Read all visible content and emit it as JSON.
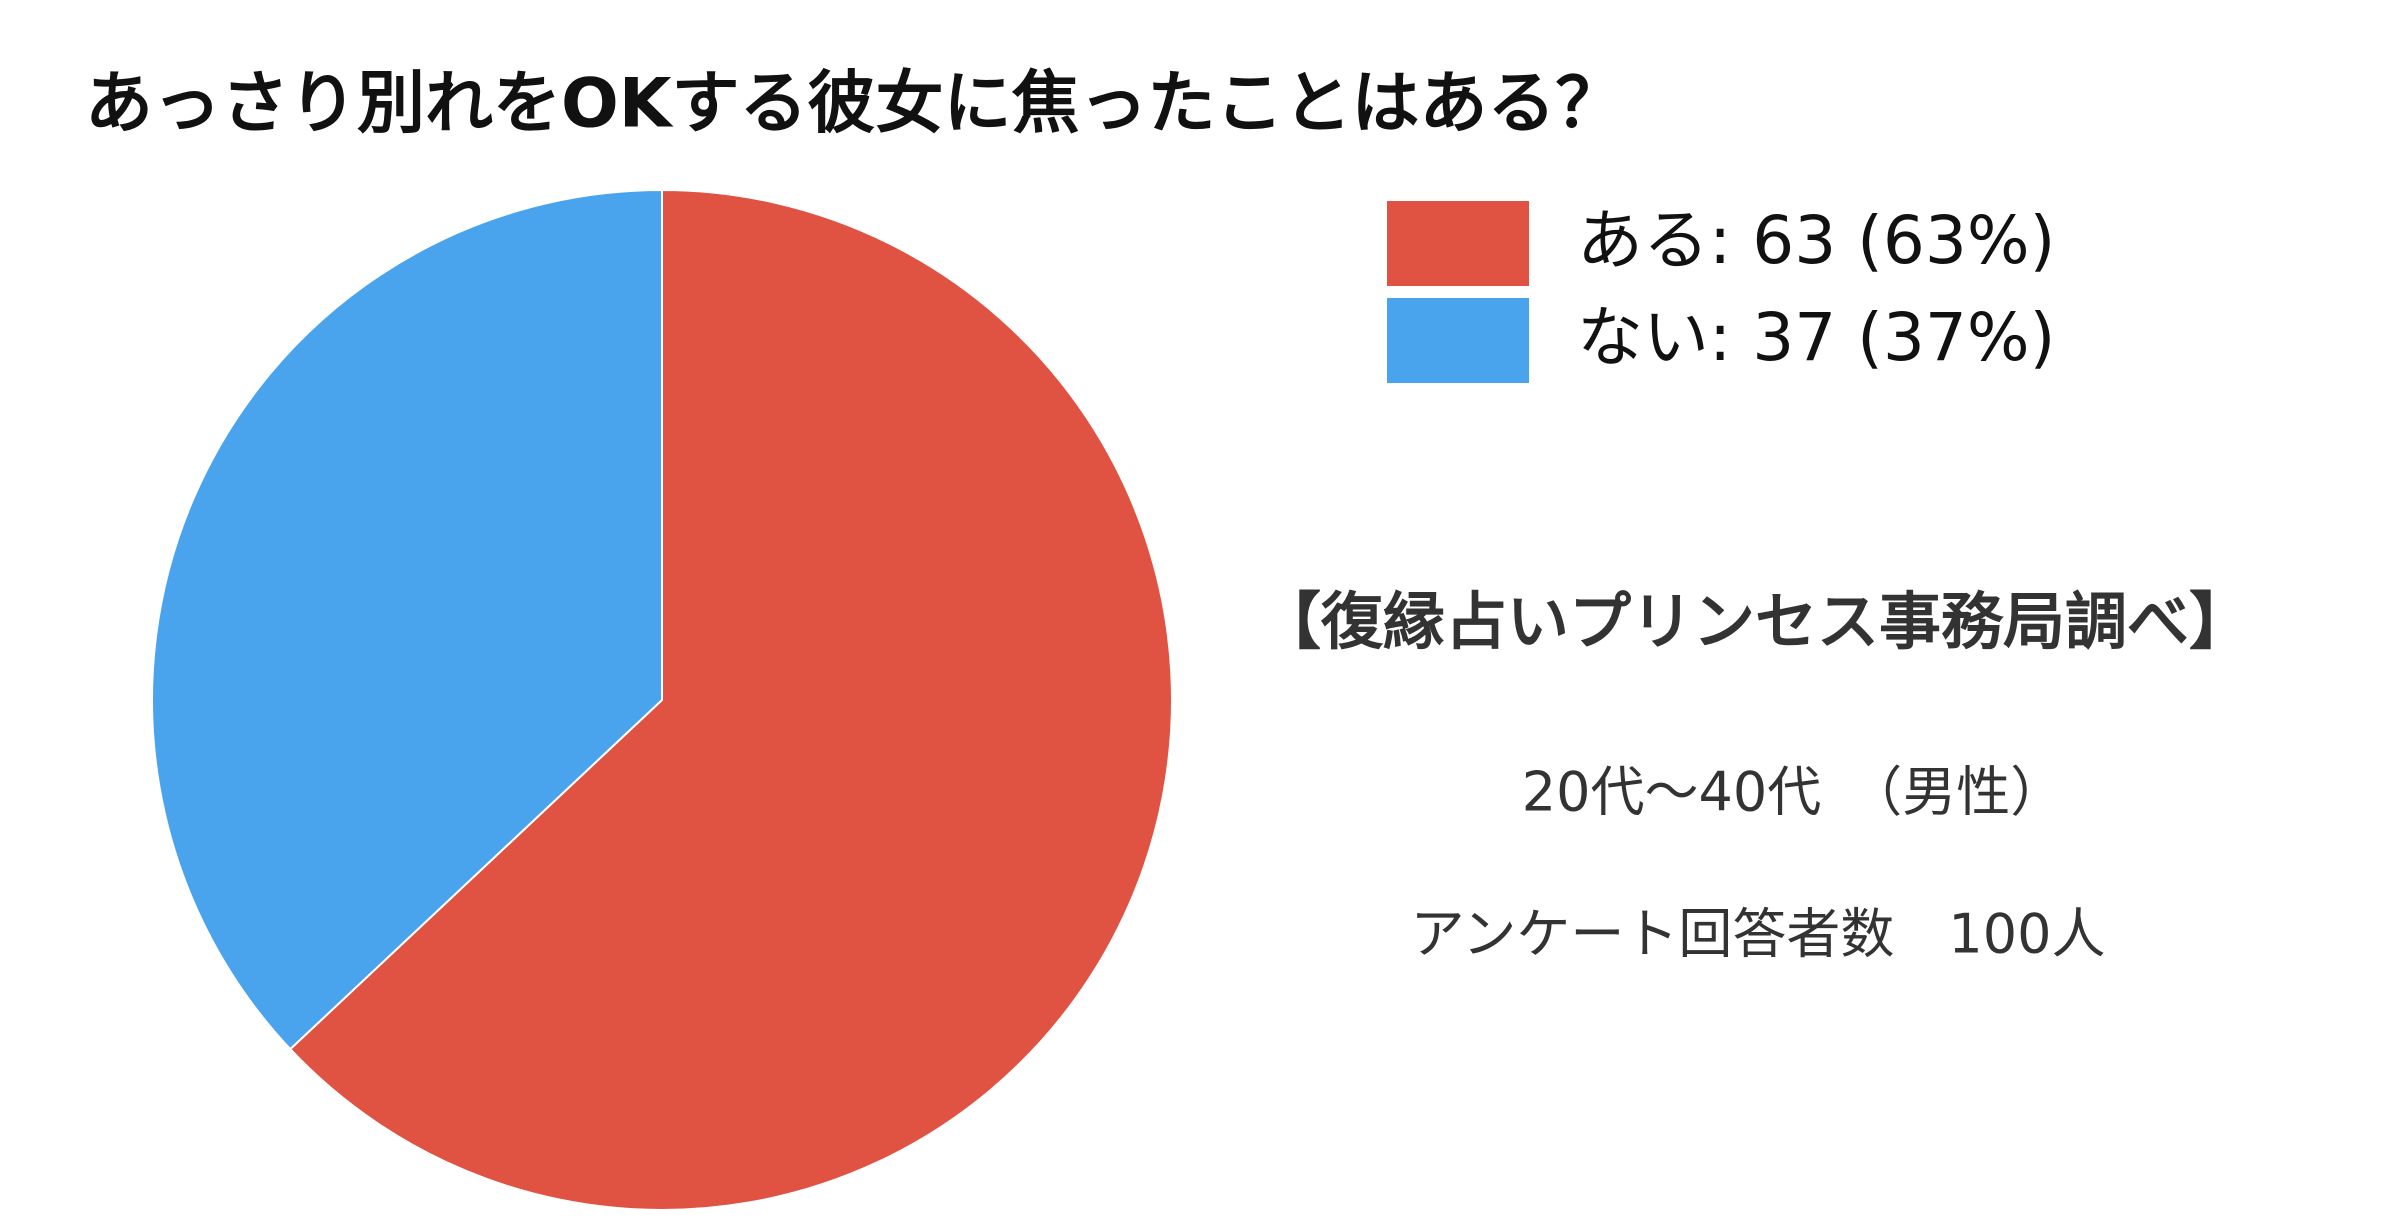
{
  "chart_data": {
    "type": "pie",
    "title": "あっさり別れをOKする彼女に焦ったことはある？",
    "values": [
      63,
      37
    ],
    "value_labels": [
      "ある: 63 (63%)",
      "ない: 37 (37%)"
    ],
    "colors": [
      "#e05343",
      "#4aa4ed"
    ],
    "start_angle": 0,
    "direction": "clockwise",
    "annotations": [
      "【復縁占いプリンセス事務局調べ】",
      "20代〜40代　（男性）",
      "アンケート回答者数　100人"
    ]
  }
}
